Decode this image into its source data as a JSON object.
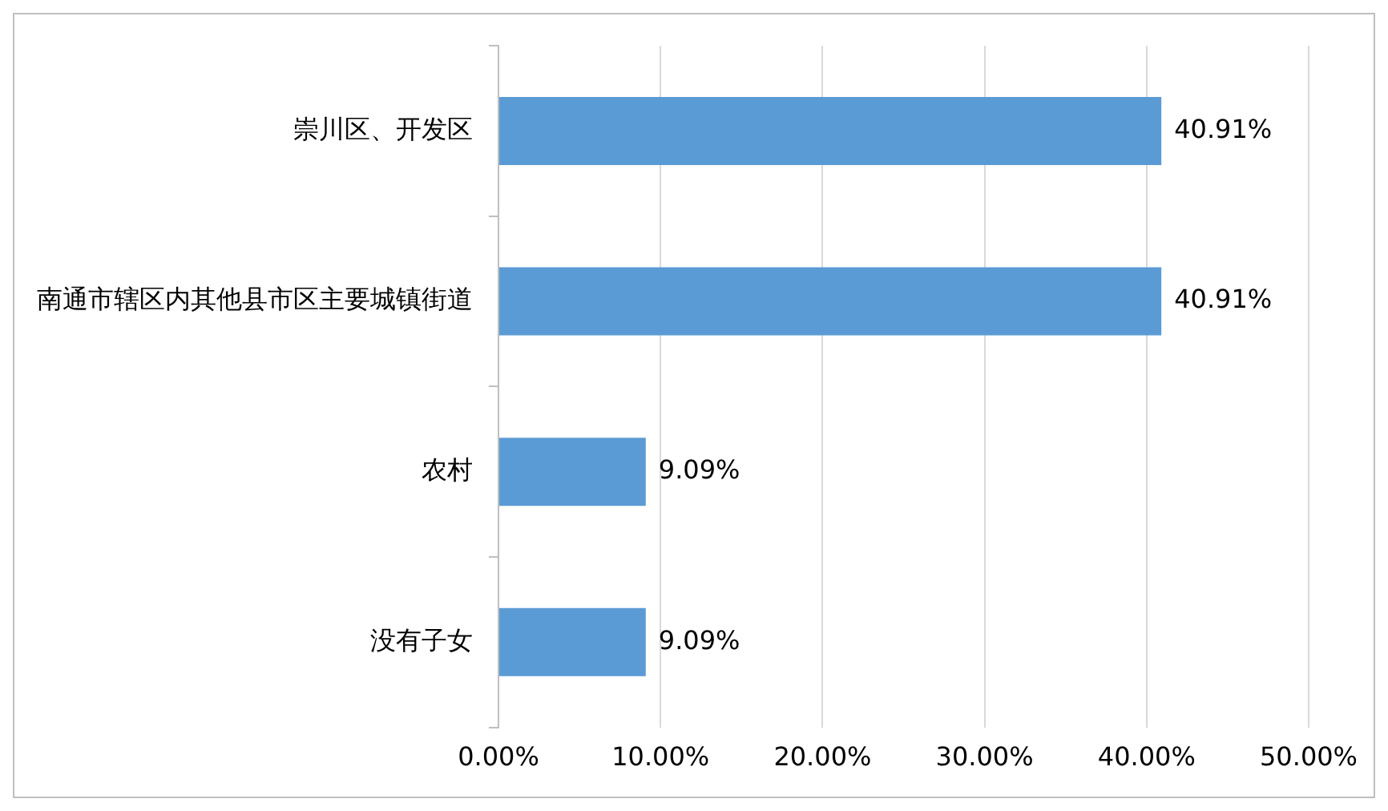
{
  "chart_data": {
    "type": "bar",
    "orientation": "horizontal",
    "categories": [
      "崇川区、开发区",
      "南通市辖区内其他县市区主要城镇街道",
      "农村",
      "没有子女"
    ],
    "values": [
      40.91,
      40.91,
      9.09,
      9.09
    ],
    "color": "#5b9bd5",
    "value_labels": [
      "40.91%",
      "40.91%",
      "9.09%",
      "9.09%"
    ],
    "xlim": [
      0,
      50
    ],
    "xticks": [
      {
        "value": 0,
        "label": "0.00%"
      },
      {
        "value": 10,
        "label": "10.00%"
      },
      {
        "value": 20,
        "label": "20.00%"
      },
      {
        "value": 30,
        "label": "30.00%"
      },
      {
        "value": 40,
        "label": "40.00%"
      },
      {
        "value": 50,
        "label": "50.00%"
      }
    ],
    "grid": "x",
    "legend": false
  }
}
